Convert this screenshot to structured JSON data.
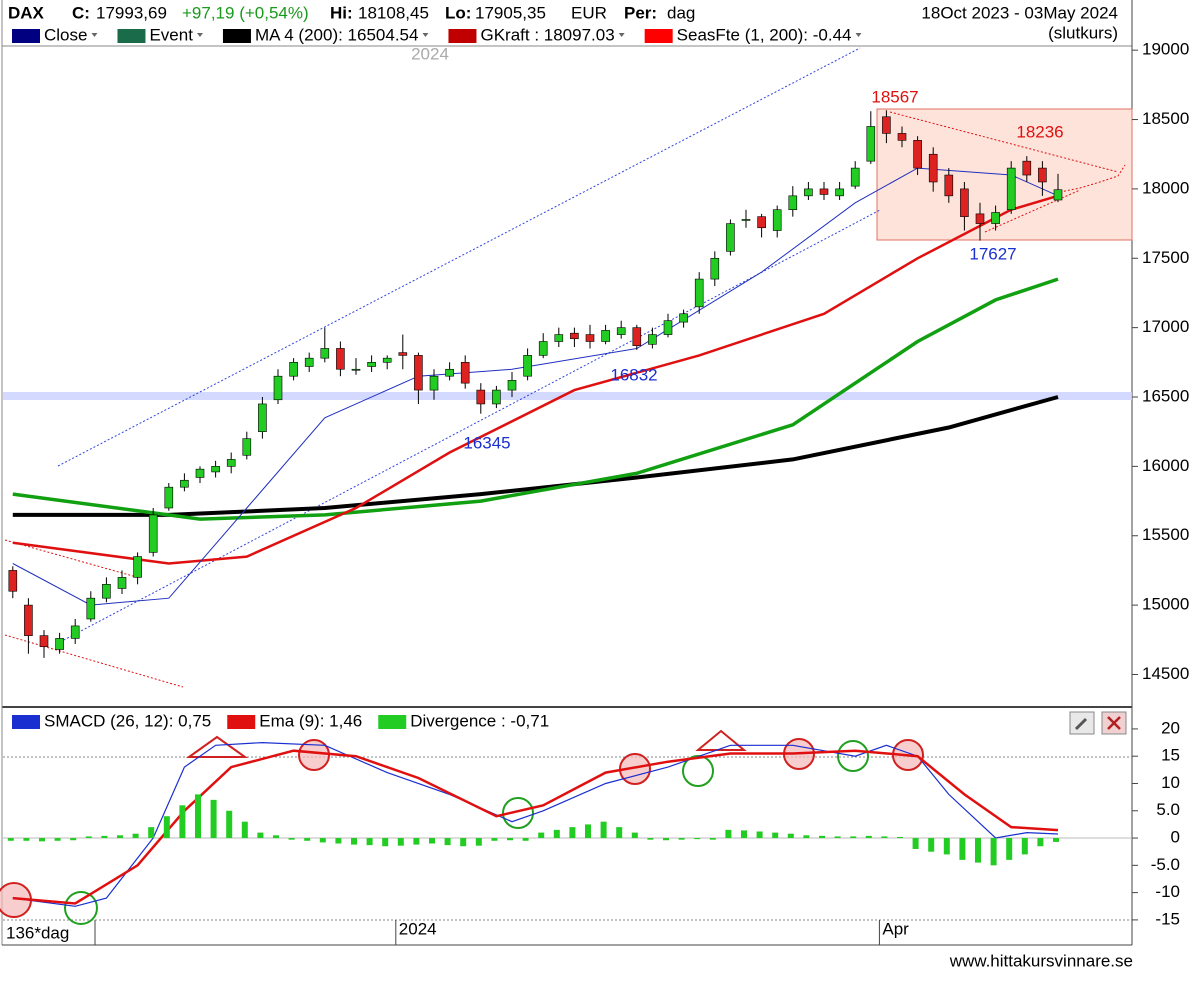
{
  "header": {
    "symbol": "DAX",
    "close_label": "C:",
    "close": "17993,69",
    "change": "+97,19 (+0,54%)",
    "hi_label": "Hi:",
    "hi": "18108,45",
    "lo_label": "Lo:",
    "lo": "17905,35",
    "currency": "EUR",
    "period_label": "Per:",
    "period": "dag",
    "range": "18Oct 2023 - 03May 2024",
    "mode": "(slutkurs)",
    "watermark": "2024",
    "footer_left": "136*dag",
    "website": "www.hittakursvinnare.se"
  },
  "chart_data": [
    {
      "type": "candlestick",
      "legend": [
        {
          "name": "Close",
          "color": "#000080"
        },
        {
          "name": "Event",
          "color": "#1a6b4a"
        },
        {
          "name": "MA 4 (200): 16504.54",
          "color": "#000000"
        },
        {
          "name": "GKraft : 18097.03",
          "color": "#c00000"
        },
        {
          "name": "SeasFte (1, 200): -0.44",
          "color": "#ff0000"
        }
      ],
      "categories": [
        null,
        null,
        null,
        null,
        null,
        null,
        null,
        null,
        null,
        null,
        null,
        null,
        null,
        null,
        null,
        null,
        null,
        null,
        null,
        null,
        null,
        null,
        null,
        null,
        null,
        "2024",
        null,
        null,
        null,
        null,
        null,
        null,
        null,
        null,
        null,
        null,
        null,
        null,
        null,
        null,
        null,
        null,
        null,
        null,
        null,
        null,
        null,
        null,
        null,
        null,
        null,
        null,
        null,
        null,
        null,
        null,
        "Apr",
        null,
        null,
        null,
        null,
        null,
        null,
        null,
        null,
        null,
        null,
        null
      ],
      "candles": [
        [
          15250,
          15280,
          15050,
          15100
        ],
        [
          15000,
          15050,
          14650,
          14780
        ],
        [
          14780,
          14820,
          14620,
          14700
        ],
        [
          14680,
          14800,
          14650,
          14760
        ],
        [
          14760,
          14900,
          14720,
          14850
        ],
        [
          14900,
          15100,
          14880,
          15050
        ],
        [
          15050,
          15200,
          15020,
          15150
        ],
        [
          15120,
          15250,
          15080,
          15200
        ],
        [
          15200,
          15380,
          15150,
          15350
        ],
        [
          15380,
          15700,
          15350,
          15650
        ],
        [
          15700,
          15880,
          15680,
          15850
        ],
        [
          15850,
          15950,
          15820,
          15900
        ],
        [
          15920,
          16000,
          15880,
          15980
        ],
        [
          15960,
          16040,
          15920,
          16000
        ],
        [
          16000,
          16100,
          15950,
          16050
        ],
        [
          16080,
          16250,
          16050,
          16200
        ],
        [
          16250,
          16500,
          16200,
          16450
        ],
        [
          16480,
          16700,
          16450,
          16650
        ],
        [
          16650,
          16780,
          16620,
          16750
        ],
        [
          16720,
          16820,
          16680,
          16780
        ],
        [
          16780,
          17000,
          16750,
          16850
        ],
        [
          16850,
          16900,
          16650,
          16700
        ],
        [
          16700,
          16780,
          16660,
          16700
        ],
        [
          16720,
          16800,
          16680,
          16750
        ],
        [
          16750,
          16800,
          16700,
          16780
        ],
        [
          16820,
          16950,
          16700,
          16800
        ],
        [
          16800,
          16820,
          16450,
          16550
        ],
        [
          16550,
          16700,
          16480,
          16650
        ],
        [
          16650,
          16750,
          16620,
          16700
        ],
        [
          16750,
          16800,
          16560,
          16600
        ],
        [
          16550,
          16600,
          16380,
          16450
        ],
        [
          16450,
          16580,
          16420,
          16550
        ],
        [
          16550,
          16680,
          16500,
          16620
        ],
        [
          16650,
          16850,
          16620,
          16800
        ],
        [
          16800,
          16960,
          16780,
          16900
        ],
        [
          16900,
          17000,
          16860,
          16950
        ],
        [
          16960,
          17000,
          16860,
          16920
        ],
        [
          16950,
          17020,
          16850,
          16900
        ],
        [
          16900,
          17020,
          16880,
          16980
        ],
        [
          16950,
          17050,
          16920,
          17000
        ],
        [
          17000,
          17020,
          16840,
          16870
        ],
        [
          16880,
          17000,
          16850,
          16950
        ],
        [
          16950,
          17100,
          16930,
          17050
        ],
        [
          17040,
          17130,
          17000,
          17100
        ],
        [
          17150,
          17400,
          17100,
          17350
        ],
        [
          17350,
          17550,
          17300,
          17500
        ],
        [
          17550,
          17780,
          17520,
          17750
        ],
        [
          17780,
          17850,
          17720,
          17780
        ],
        [
          17800,
          17820,
          17650,
          17720
        ],
        [
          17700,
          17880,
          17650,
          17850
        ],
        [
          17850,
          18020,
          17800,
          17950
        ],
        [
          17950,
          18050,
          17920,
          18000
        ],
        [
          18000,
          18050,
          17920,
          17960
        ],
        [
          17950,
          18050,
          17920,
          18000
        ],
        [
          18020,
          18200,
          18000,
          18150
        ],
        [
          18200,
          18560,
          18180,
          18450
        ],
        [
          18520,
          18567,
          18330,
          18400
        ],
        [
          18400,
          18450,
          18300,
          18350
        ],
        [
          18350,
          18380,
          18100,
          18150
        ],
        [
          18250,
          18300,
          17980,
          18050
        ],
        [
          18100,
          18150,
          17900,
          17950
        ],
        [
          18000,
          18050,
          17700,
          17800
        ],
        [
          17820,
          17900,
          17627,
          17750
        ],
        [
          17750,
          17880,
          17700,
          17830
        ],
        [
          17850,
          18200,
          17820,
          18150
        ],
        [
          18200,
          18236,
          18050,
          18100
        ],
        [
          18150,
          18200,
          17950,
          18050
        ],
        [
          17920,
          18108,
          17905,
          17994
        ]
      ],
      "up_color": "#22cc22",
      "down_color": "#dd2222",
      "lines": [
        {
          "color": "#000000",
          "width": 4,
          "x": [
            0,
            10,
            20,
            30,
            40,
            50,
            60,
            67
          ],
          "values": [
            15650,
            15650,
            15700,
            15800,
            15920,
            16050,
            16280,
            16500
          ]
        },
        {
          "color": "#11a011",
          "width": 3.5,
          "x": [
            0,
            12,
            20,
            30,
            40,
            50,
            58,
            63,
            67
          ],
          "values": [
            15800,
            15620,
            15650,
            15750,
            15950,
            16300,
            16900,
            17200,
            17350
          ]
        },
        {
          "color": "#e01010",
          "width": 2.5,
          "x": [
            0,
            10,
            15,
            22,
            28,
            36,
            44,
            52,
            58,
            64,
            67
          ],
          "values": [
            15450,
            15300,
            15350,
            15700,
            16100,
            16550,
            16800,
            17100,
            17500,
            17850,
            17950
          ]
        },
        {
          "color": "#2030c0",
          "width": 1,
          "x": [
            0,
            5,
            10,
            15,
            20,
            26,
            32,
            40,
            48,
            54,
            58,
            64,
            67
          ],
          "values": [
            15300,
            15000,
            15050,
            15700,
            16350,
            16650,
            16700,
            16850,
            17400,
            17900,
            18150,
            18100,
            17950
          ]
        }
      ],
      "annotations": [
        {
          "label": "18567",
          "color": "#e01010"
        },
        {
          "label": "18236",
          "color": "#e01010"
        },
        {
          "label": "17627",
          "color": "#1a2fd0"
        },
        {
          "label": "16832",
          "color": "#1a2fd0"
        },
        {
          "label": "16345",
          "color": "#1a2fd0"
        }
      ],
      "ylim": [
        14280,
        19340
      ],
      "yticks": [
        14500,
        15000,
        15500,
        16000,
        16500,
        17000,
        17500,
        18000,
        18500,
        19000
      ]
    },
    {
      "type": "indicator",
      "series": [
        {
          "name": "SMACD (26, 12): 0,75",
          "color": "#1a2fd0",
          "x": [
            0,
            4,
            6,
            9,
            11,
            13,
            16,
            20,
            24,
            28,
            32,
            34,
            38,
            42,
            46,
            50,
            54,
            56,
            58,
            60,
            63,
            65,
            67
          ],
          "values": [
            -11,
            -12.5,
            -11,
            0,
            13,
            17,
            17.5,
            17,
            12,
            8,
            3,
            5,
            10,
            13,
            17,
            17,
            15,
            17,
            15,
            8,
            0,
            1,
            0.75
          ]
        },
        {
          "name": "Ema (9): 1,46",
          "color": "#e01010",
          "x": [
            0,
            4,
            8,
            11,
            14,
            18,
            22,
            26,
            31,
            34,
            38,
            42,
            46,
            50,
            54,
            58,
            61,
            64,
            67
          ],
          "values": [
            -11,
            -12,
            -5,
            5,
            13,
            16,
            15,
            11,
            4,
            6,
            12,
            14,
            15.5,
            15.5,
            16,
            15,
            8,
            2,
            1.46
          ]
        },
        {
          "name": "Divergence : -0,71",
          "color": "#22cc22",
          "bars": true,
          "values": [
            -0.5,
            -0.5,
            -0.6,
            -0.5,
            -0.4,
            0.3,
            0.4,
            0.5,
            0.8,
            2,
            4,
            6,
            8,
            7,
            5,
            3,
            1,
            0.5,
            -0.3,
            -0.5,
            -0.8,
            -1,
            -1.2,
            -1.3,
            -1.5,
            -1.4,
            -1.2,
            -1,
            -1.3,
            -1.5,
            -1.4,
            -0.5,
            -0.4,
            -0.5,
            1,
            1.5,
            2,
            2.5,
            3,
            2,
            1,
            -0.3,
            -0.4,
            -0.3,
            -0.2,
            -0.3,
            1.5,
            1.4,
            1.2,
            1,
            0.8,
            0.5,
            0.4,
            0.3,
            0.3,
            0.4,
            0.3,
            0.2,
            -2,
            -2.5,
            -3,
            -4,
            -4.5,
            -5,
            -4,
            -3,
            -1.5,
            -0.71
          ]
        }
      ],
      "ylim": [
        -18.5,
        22
      ],
      "yticks": [
        20,
        15,
        10,
        {
          "value": 5,
          "label": "5.0"
        },
        0,
        {
          "value": -5,
          "label": "-5.0"
        },
        -10,
        -15
      ]
    }
  ]
}
